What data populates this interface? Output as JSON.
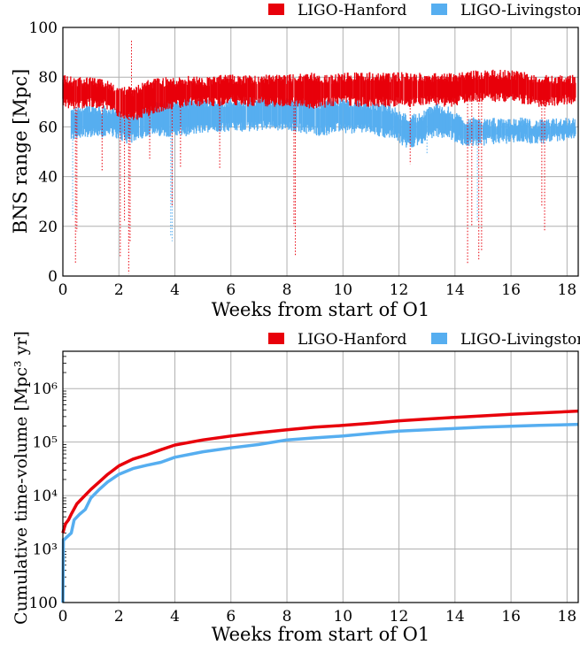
{
  "chart_data": [
    {
      "type": "scatter",
      "xlabel": "Weeks from start of O1",
      "ylabel": "BNS range [Mpc]",
      "xlim": [
        0,
        18.4
      ],
      "ylim": [
        0,
        100
      ],
      "xticks": [
        "0",
        "2",
        "4",
        "6",
        "8",
        "10",
        "12",
        "14",
        "16",
        "18"
      ],
      "yticks": [
        "0",
        "20",
        "40",
        "60",
        "80",
        "100"
      ],
      "grid": true,
      "legend": "top-right",
      "series": [
        {
          "name": "LIGO-Hanford",
          "color": "#e8000b",
          "band_x": [
            0,
            0.5,
            1,
            1.5,
            2,
            2.5,
            3,
            3.5,
            4,
            4.5,
            5,
            5.5,
            6,
            6.5,
            7,
            7.5,
            8,
            8.5,
            9,
            9.5,
            10,
            10.5,
            11,
            11.5,
            12,
            12.5,
            13,
            13.5,
            14,
            14.5,
            15,
            15.5,
            16,
            16.5,
            17,
            17.5,
            18,
            18.3
          ],
          "band_lo": [
            70,
            68,
            70,
            69,
            66,
            64,
            66,
            68,
            69,
            70,
            70,
            70,
            71,
            70,
            70,
            70,
            70,
            70,
            69,
            70,
            71,
            70,
            70,
            70,
            70,
            70,
            71,
            70,
            70,
            72,
            72,
            72,
            72,
            71,
            70,
            70,
            71,
            71
          ],
          "band_hi": [
            79,
            78,
            78,
            77,
            75,
            74,
            77,
            78,
            78,
            79,
            78,
            79,
            79,
            79,
            79,
            79,
            79,
            80,
            80,
            79,
            80,
            80,
            80,
            80,
            80,
            80,
            80,
            80,
            80,
            81,
            81,
            81,
            81,
            80,
            79,
            79,
            79,
            79
          ],
          "dropouts": [
            [
              0.45,
              5
            ],
            [
              0.5,
              18
            ],
            [
              1.4,
              42
            ],
            [
              2.05,
              8
            ],
            [
              2.2,
              22
            ],
            [
              2.35,
              1
            ],
            [
              2.4,
              14
            ],
            [
              2.45,
              95
            ],
            [
              3.1,
              47
            ],
            [
              3.9,
              28
            ],
            [
              4.2,
              44
            ],
            [
              5.6,
              43
            ],
            [
              8.3,
              8
            ],
            [
              8.25,
              20
            ],
            [
              12.4,
              45
            ],
            [
              14.45,
              5
            ],
            [
              14.6,
              20
            ],
            [
              14.85,
              6
            ],
            [
              14.95,
              10
            ],
            [
              17.2,
              18
            ],
            [
              17.1,
              28
            ]
          ]
        },
        {
          "name": "LIGO-Livingston",
          "color": "#56aef0",
          "band_x": [
            0.3,
            0.8,
            1.3,
            1.8,
            2.3,
            2.8,
            3.3,
            3.8,
            4.3,
            4.8,
            5.3,
            5.8,
            6.3,
            6.8,
            7.3,
            7.8,
            8.3,
            8.8,
            9.3,
            9.8,
            10.3,
            10.8,
            11.3,
            11.8,
            12.3,
            12.8,
            13.3,
            13.8,
            14.3,
            14.8,
            15.3,
            15.8,
            16.3,
            16.8,
            17.3,
            17.8,
            18.3
          ],
          "band_lo": [
            56,
            58,
            57,
            58,
            55,
            57,
            58,
            58,
            58,
            59,
            60,
            60,
            60,
            60,
            61,
            60,
            60,
            59,
            58,
            60,
            59,
            60,
            58,
            57,
            53,
            55,
            58,
            57,
            54,
            54,
            55,
            55,
            56,
            55,
            55,
            56,
            56
          ],
          "band_hi": [
            66,
            67,
            67,
            66,
            64,
            66,
            68,
            69,
            69,
            70,
            70,
            70,
            70,
            70,
            71,
            70,
            70,
            70,
            69,
            70,
            69,
            69,
            68,
            67,
            63,
            64,
            68,
            66,
            62,
            62,
            62,
            61,
            62,
            61,
            61,
            62,
            62
          ],
          "dropouts": [
            [
              3.85,
              16
            ],
            [
              3.9,
              14
            ],
            [
              0.35,
              24
            ],
            [
              14.8,
              22
            ],
            [
              13.0,
              49
            ]
          ]
        }
      ]
    },
    {
      "type": "line",
      "xlabel": "Weeks from start of O1",
      "ylabel": "Cumulative time-volume [Mpc³ yr]",
      "xlim": [
        0,
        18.4
      ],
      "ylim": [
        100,
        5000000
      ],
      "yscale": "log",
      "xticks": [
        "0",
        "2",
        "4",
        "6",
        "8",
        "10",
        "12",
        "14",
        "16",
        "18"
      ],
      "yticks": [
        "100",
        "10³",
        "10⁴",
        "10⁵",
        "10⁶"
      ],
      "grid": true,
      "legend": "top-right",
      "series": [
        {
          "name": "LIGO-Hanford",
          "color": "#e8000b",
          "x": [
            0,
            0.05,
            0.1,
            0.2,
            0.3,
            0.5,
            0.7,
            1,
            1.3,
            1.6,
            2,
            2.5,
            3,
            3.5,
            4,
            5,
            6,
            7,
            8,
            9,
            10,
            11,
            12,
            13,
            14,
            15,
            16,
            17,
            18,
            18.4
          ],
          "y": [
            2000,
            2500,
            3000,
            3500,
            4500,
            7000,
            9000,
            13000,
            18000,
            25000,
            36000,
            48000,
            58000,
            72000,
            88000,
            110000,
            130000,
            150000,
            170000,
            190000,
            205000,
            225000,
            250000,
            270000,
            290000,
            310000,
            330000,
            350000,
            370000,
            380000
          ]
        },
        {
          "name": "LIGO-Livingston",
          "color": "#56aef0",
          "x": [
            0,
            0.02,
            0.05,
            0.1,
            0.3,
            0.4,
            0.6,
            0.8,
            1,
            1.3,
            1.6,
            2,
            2.5,
            3,
            3.5,
            4,
            5,
            6,
            7,
            8,
            9,
            10,
            11,
            12,
            13,
            14,
            15,
            16,
            17,
            18,
            18.4
          ],
          "y": [
            100,
            1500,
            1500,
            1600,
            2000,
            3500,
            4500,
            5500,
            9000,
            13000,
            18000,
            25000,
            32000,
            37000,
            42000,
            52000,
            66000,
            78000,
            90000,
            110000,
            120000,
            130000,
            145000,
            160000,
            170000,
            180000,
            190000,
            198000,
            205000,
            212000,
            215000
          ]
        }
      ]
    }
  ]
}
